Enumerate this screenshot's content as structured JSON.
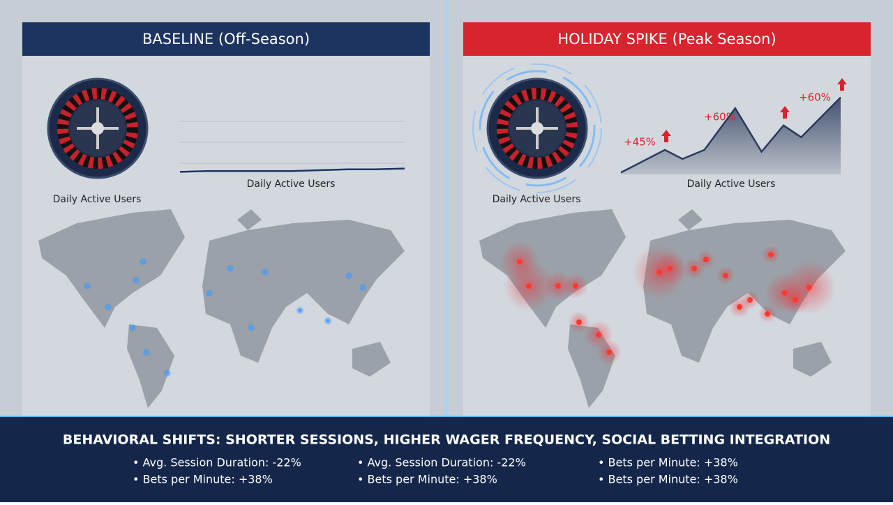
{
  "panels": [
    {
      "title": "BASELINE (Off-Season)",
      "wheel_label": "Daily Active Users",
      "chart": {
        "type": "line",
        "x_label": "Daily Active Users",
        "color": "#1d3461",
        "x": [
          0,
          12,
          25,
          37,
          50,
          62,
          75,
          87,
          100
        ],
        "values": [
          3,
          4,
          4,
          4,
          4,
          5,
          6,
          6,
          7
        ],
        "xlim": [
          0,
          100
        ],
        "ylim": [
          0,
          100
        ],
        "area": false
      }
    },
    {
      "title": "HOLIDAY SPIKE (Peak Season)",
      "wheel_label": "Daily Active Users",
      "chart": {
        "type": "line",
        "x_label": "Daily Active Users",
        "color": "#2b3a5c",
        "x": [
          0,
          20,
          28,
          38,
          52,
          64,
          74,
          82,
          100
        ],
        "values": [
          2,
          27,
          17,
          27,
          73,
          25,
          54,
          41,
          85
        ],
        "xlim": [
          0,
          100
        ],
        "ylim": [
          0,
          100
        ],
        "area": true,
        "annotations": [
          "+45%",
          "+60%",
          "+60%"
        ]
      }
    }
  ],
  "footer": {
    "title": "BEHAVIORAL SHIFTS: SHORTER SESSIONS, HIGHER WAGER FREQUENCY, SOCIAL BETTING INTEGRATION",
    "columns": [
      [
        "• Avg. Session Duration: -22%",
        "• Bets per Minute: +38%"
      ],
      [
        "• Avg. Session Duration: -22%",
        "• Bets per Minute: +38%"
      ],
      [
        "• Bets per Minute: +38%",
        "• Bets per Minute: +38%"
      ]
    ]
  }
}
